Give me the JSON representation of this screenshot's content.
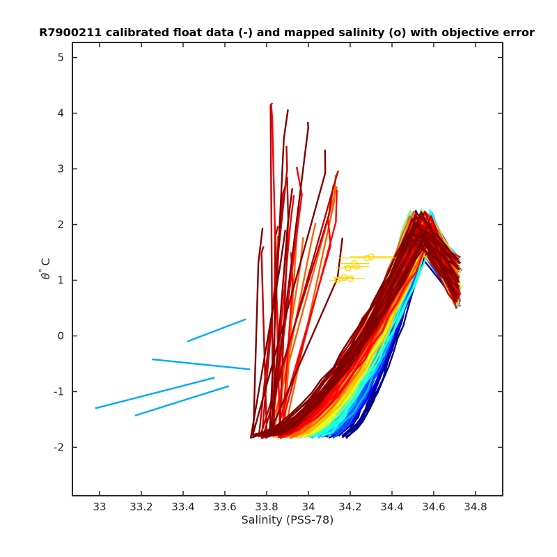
{
  "chart_data": {
    "type": "line",
    "title": "R7900211 calibrated float data (-) and mapped salinity (o) with objective error",
    "xlabel": "Salinity (PSS-78)",
    "ylabel_symbol": "θ",
    "ylabel_degree": "°",
    "ylabel_unit": "C",
    "xlim": [
      32.87,
      34.93
    ],
    "ylim": [
      -2.87,
      5.27
    ],
    "x_ticks": [
      "33",
      "33.2",
      "33.4",
      "33.6",
      "33.8",
      "34",
      "34.2",
      "34.4",
      "34.6",
      "34.8"
    ],
    "y_ticks": [
      "-2",
      "-1",
      "0",
      "1",
      "2",
      "3",
      "4",
      "5"
    ],
    "grid": false,
    "colormap": [
      "#00008f",
      "#0000ff",
      "#0060ff",
      "#00bfff",
      "#20ffdf",
      "#80ff80",
      "#dfff20",
      "#ffbf00",
      "#ff6000",
      "#ff0000",
      "#bf0000",
      "#800000"
    ],
    "profile_count": 180,
    "mapped_color": "#ffd700",
    "mapped_points": [
      {
        "salinity": 34.3,
        "theta": 1.42,
        "err": 0.1
      },
      {
        "salinity": 34.22,
        "theta": 1.3,
        "err": 0.07
      },
      {
        "salinity": 34.19,
        "theta": 1.22,
        "err": 0.06
      },
      {
        "salinity": 34.23,
        "theta": 1.25,
        "err": 0.06
      },
      {
        "salinity": 34.17,
        "theta": 1.05,
        "err": 0.05
      },
      {
        "salinity": 34.14,
        "theta": 1.0,
        "err": 0.04
      },
      {
        "salinity": 34.2,
        "theta": 1.03,
        "err": 0.07
      },
      {
        "salinity": 34.28,
        "theta": 1.4,
        "err": 0.14
      }
    ]
  }
}
